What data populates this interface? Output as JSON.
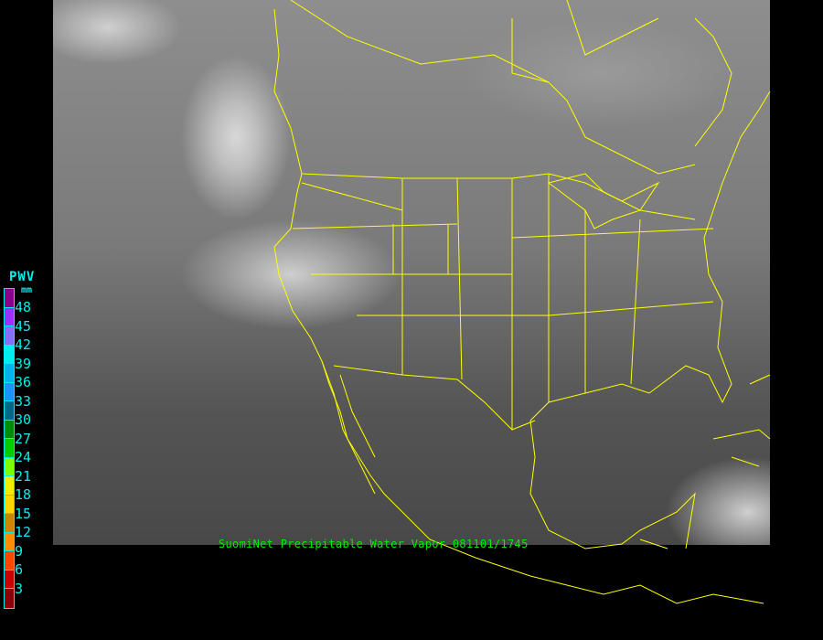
{
  "caption": "SuomiNet Precipitable Water Vapor 081101/1745",
  "legend": {
    "title": "PWV",
    "unit": "mm",
    "labels": [
      "48",
      "45",
      "42",
      "39",
      "36",
      "33",
      "30",
      "27",
      "24",
      "21",
      "18",
      "15",
      "12",
      "9",
      "6",
      "3"
    ],
    "colors": [
      "#8b008b",
      "#9b30ff",
      "#8470ff",
      "#00eeee",
      "#00b2ee",
      "#1e90ff",
      "#00688b",
      "#008b00",
      "#00cd00",
      "#7fff00",
      "#eeee00",
      "#ffd700",
      "#cd8500",
      "#ff8c00",
      "#ff4500",
      "#cd0000",
      "#8b0000"
    ],
    "text_color": "#00eeee"
  },
  "map": {
    "boundary_color": "#ffff00",
    "caption_color": "#00ee00"
  }
}
